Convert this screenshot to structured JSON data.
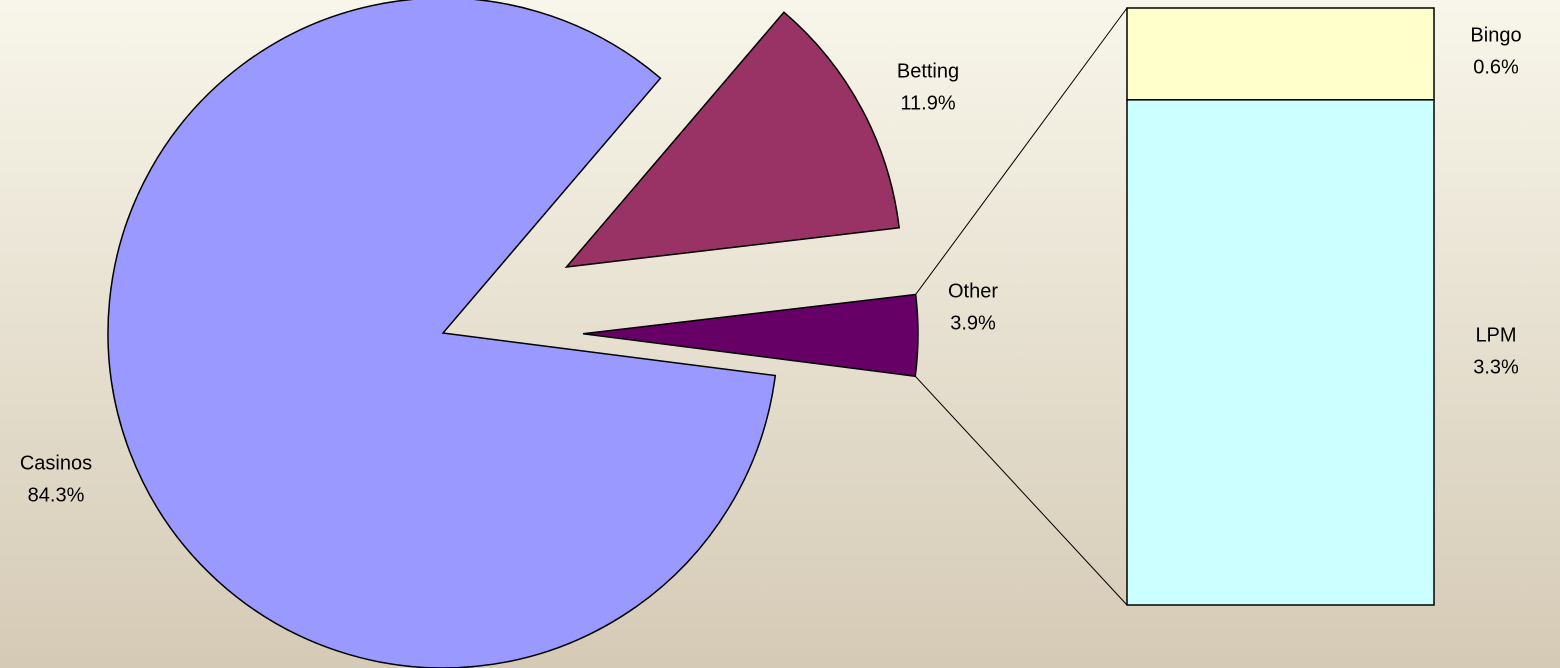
{
  "chart_data": {
    "type": "pie",
    "categories": [
      "Casinos",
      "Betting",
      "Other"
    ],
    "values": [
      84.3,
      11.9,
      3.9
    ],
    "value_labels": [
      "84.3%",
      "11.9%",
      "3.9%"
    ],
    "colors": [
      "#9999ff",
      "#993366",
      "#660066"
    ],
    "breakdown": {
      "type": "bar",
      "categories": [
        "Bingo",
        "LPM"
      ],
      "values": [
        0.6,
        3.3
      ],
      "value_labels": [
        "0.6%",
        "3.3%"
      ],
      "colors": [
        "#ffffcc",
        "#ccffff"
      ]
    }
  }
}
